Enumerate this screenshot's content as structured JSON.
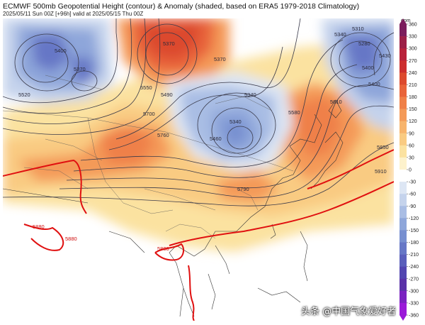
{
  "header": {
    "title": "ECMWF 500mb Geopotential Height (contour) & Anomaly (shaded, based on ERA5 1979-2018 Climatology)",
    "subtitle": "2025/05/11 Sun 00Z [+96h] valid at 2025/05/15 Thu 00Z"
  },
  "colorbar": {
    "unit": "gpm",
    "ticks": [
      "360",
      "330",
      "300",
      "270",
      "240",
      "210",
      "180",
      "150",
      "120",
      "90",
      "60",
      "30",
      "0",
      "-30",
      "-60",
      "-90",
      "-120",
      "-150",
      "-180",
      "-210",
      "-240",
      "-270",
      "-300",
      "-330",
      "-360"
    ],
    "colors": [
      "#7b1d5c",
      "#9c1f47",
      "#b8213a",
      "#cc2e2e",
      "#dc4a2e",
      "#e8643a",
      "#ef8048",
      "#f49a58",
      "#f7b46c",
      "#f9cb82",
      "#fbe2a0",
      "#fdf2cc",
      "#ffffff",
      "#dde6f4",
      "#c5d3ec",
      "#a9bde4",
      "#8ea6da",
      "#778fd0",
      "#6677c6",
      "#5a5fbb",
      "#5246b0",
      "#5a32a8",
      "#7a22c0",
      "#9a1ad8"
    ]
  },
  "contours": {
    "labels": [
      "5400",
      "5370",
      "5520",
      "5370",
      "5550",
      "5490",
      "5340",
      "5340",
      "5700",
      "5760",
      "5460",
      "5580",
      "5610",
      "5340",
      "5310",
      "5280",
      "5430",
      "5400",
      "5400",
      "5370",
      "5850",
      "5910",
      "5790",
      "5880",
      "5880",
      "5880"
    ],
    "colors": {
      "normal": "#3a3a4a",
      "ridge": "#e01010"
    }
  },
  "watermark": "头条 @中国气象爱好者"
}
